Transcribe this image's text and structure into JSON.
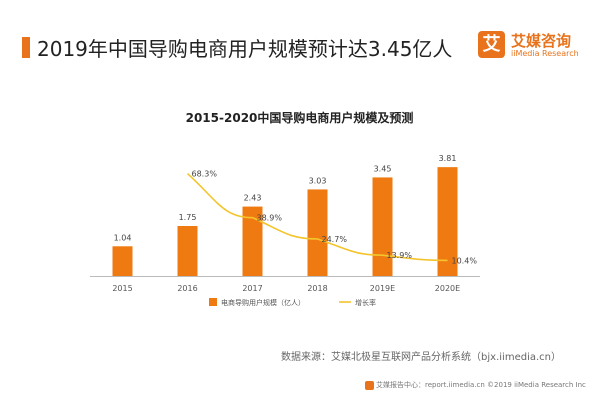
{
  "header": {
    "headline": "2019年中国导购电商用户规模预计达3.45亿人"
  },
  "logo": {
    "mark": "艾",
    "name_cn": "艾媒咨询",
    "name_en": "iiMedia Research"
  },
  "colors": {
    "accent": "#e8731c",
    "bar": "#f07a12",
    "line": "#f3c42c"
  },
  "chart_data": {
    "type": "bar",
    "title": "2015-2020中国导购电商用户规模及预测",
    "categories": [
      "2015",
      "2016",
      "2017",
      "2018",
      "2019E",
      "2020E"
    ],
    "series": [
      {
        "name": "电商导购用户规模（亿人）",
        "type": "bar",
        "values": [
          1.04,
          1.75,
          2.43,
          3.03,
          3.45,
          3.81
        ],
        "labels": [
          "1.04",
          "1.75",
          "2.43",
          "3.03",
          "3.45",
          "3.81"
        ]
      },
      {
        "name": "增长率",
        "type": "line",
        "values": [
          null,
          68.3,
          38.9,
          24.7,
          13.9,
          10.4
        ],
        "labels": [
          "",
          "68.3%",
          "38.9%",
          "24.7%",
          "13.9%",
          "10.4%"
        ]
      }
    ],
    "ylim": [
      0,
      4.2
    ],
    "y2lim": [
      0,
      80
    ],
    "legend": "bottom"
  },
  "footer": {
    "source": "数据来源：艾媒北极星互联网产品分析系统（bjx.iimedia.cn）",
    "copyright": "艾媒报告中心：report.iimedia.cn ©2019 iiMedia Research Inc"
  }
}
